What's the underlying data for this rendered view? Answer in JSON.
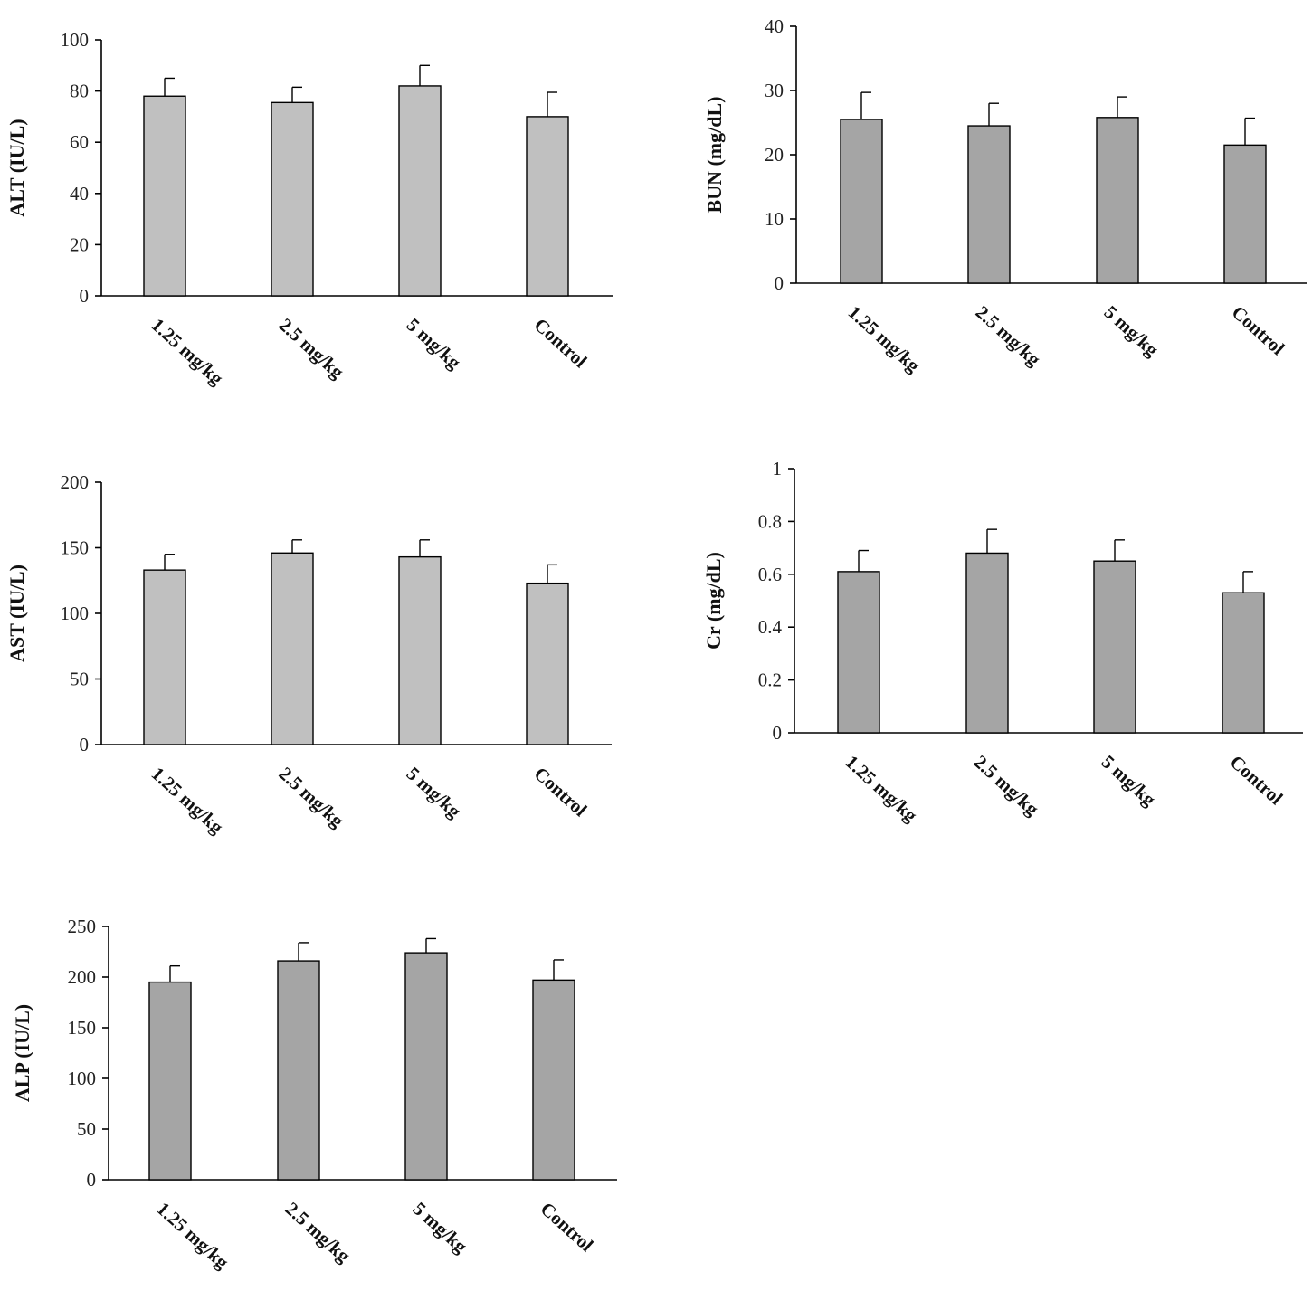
{
  "colors": {
    "bar_light": "#c0c0c0",
    "bar_dark": "#a5a5a5"
  },
  "chart_data": [
    {
      "id": "alt",
      "type": "bar",
      "categories": [
        "1.25 mg/kg",
        "2.5 mg/kg",
        "5 mg/kg",
        "Control"
      ],
      "values": [
        78,
        75.5,
        82,
        70
      ],
      "errors": [
        7,
        6,
        8,
        9.5
      ],
      "ylabel": "ALT  (IU/L)",
      "ylim": [
        0,
        100
      ],
      "yticks": [
        0,
        20,
        40,
        60,
        80,
        100
      ],
      "ytick_labels": [
        "0",
        "20",
        "40",
        "60",
        "80",
        "100"
      ],
      "grid": false,
      "bar_color": "#c0c0c0"
    },
    {
      "id": "bun",
      "type": "bar",
      "categories": [
        "1.25 mg/kg",
        "2.5 mg/kg",
        "5 mg/kg",
        "Control"
      ],
      "values": [
        25.5,
        24.5,
        25.8,
        21.5
      ],
      "errors": [
        4.2,
        3.5,
        3.2,
        4.2
      ],
      "ylabel": "BUN  (mg/dL)",
      "ylim": [
        0,
        40
      ],
      "yticks": [
        0,
        10,
        20,
        30,
        40
      ],
      "ytick_labels": [
        "0",
        "10",
        "20",
        "30",
        "40"
      ],
      "grid": false,
      "bar_color": "#a5a5a5"
    },
    {
      "id": "ast",
      "type": "bar",
      "categories": [
        "1.25 mg/kg",
        "2.5 mg/kg",
        "5 mg/kg",
        "Control"
      ],
      "values": [
        133,
        146,
        143,
        123
      ],
      "errors": [
        12,
        10,
        13,
        14
      ],
      "ylabel": "AST  (IU/L)",
      "ylim": [
        0,
        200
      ],
      "yticks": [
        0,
        50,
        100,
        150,
        200
      ],
      "ytick_labels": [
        "0",
        "50",
        "100",
        "150",
        "200"
      ],
      "grid": false,
      "bar_color": "#c0c0c0"
    },
    {
      "id": "cr",
      "type": "bar",
      "categories": [
        "1.25 mg/kg",
        "2.5 mg/kg",
        "5 mg/kg",
        "Control"
      ],
      "values": [
        0.61,
        0.68,
        0.65,
        0.53
      ],
      "errors": [
        0.08,
        0.09,
        0.08,
        0.08
      ],
      "ylabel": "Cr  (mg/dL)",
      "ylim": [
        0,
        1
      ],
      "yticks": [
        0,
        0.2,
        0.4,
        0.6,
        0.8,
        1
      ],
      "ytick_labels": [
        "0",
        "0.2",
        "0.4",
        "0.6",
        "0.8",
        "1"
      ],
      "grid": false,
      "bar_color": "#a5a5a5"
    },
    {
      "id": "alp",
      "type": "bar",
      "categories": [
        "1.25 mg/kg",
        "2.5 mg/kg",
        "5 mg/kg",
        "Control"
      ],
      "values": [
        195,
        216,
        224,
        197
      ],
      "errors": [
        16,
        18,
        14,
        20
      ],
      "ylabel": "ALP  (IU/L)",
      "ylim": [
        0,
        250
      ],
      "yticks": [
        0,
        50,
        100,
        150,
        200,
        250
      ],
      "ytick_labels": [
        "0",
        "50",
        "100",
        "150",
        "200",
        "250"
      ],
      "grid": false,
      "bar_color": "#a5a5a5"
    }
  ]
}
